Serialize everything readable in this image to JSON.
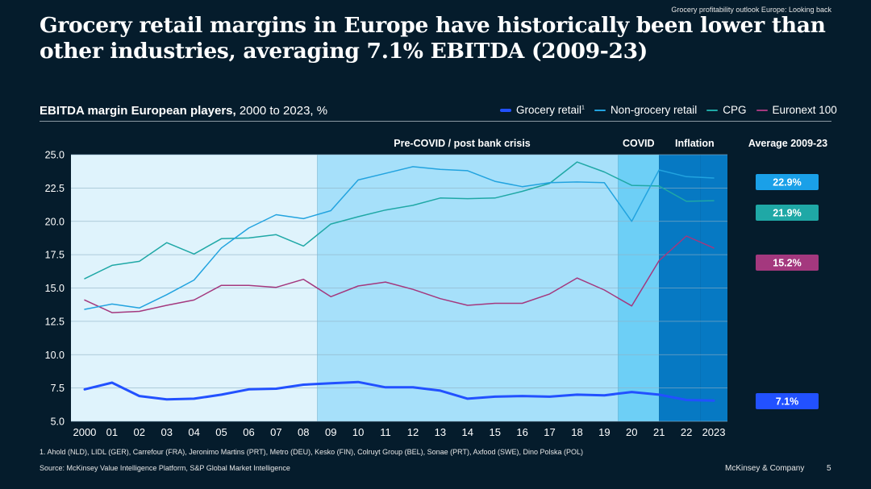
{
  "header": {
    "breadcrumb": "Grocery profitability outlook Europe: Looking back",
    "title": "Grocery retail margins in Europe have historically been lower than other industries, averaging 7.1% EBITDA (2009-23)"
  },
  "chart_data": {
    "type": "line",
    "title": "EBITDA margin European players,",
    "subtitle": " 2000 to 2023, %",
    "x": [
      2000,
      2001,
      2002,
      2003,
      2004,
      2005,
      2006,
      2007,
      2008,
      2009,
      2010,
      2011,
      2012,
      2013,
      2014,
      2015,
      2016,
      2017,
      2018,
      2019,
      2020,
      2021,
      2022,
      2023
    ],
    "x_tick_labels": [
      "2000",
      "01",
      "02",
      "03",
      "04",
      "05",
      "06",
      "07",
      "08",
      "09",
      "10",
      "11",
      "12",
      "13",
      "14",
      "15",
      "16",
      "17",
      "18",
      "19",
      "20",
      "21",
      "22",
      "2023"
    ],
    "ylim": [
      5.0,
      25.0
    ],
    "y_ticks": [
      "5.0",
      "7.5",
      "10.0",
      "12.5",
      "15.0",
      "17.5",
      "20.0",
      "22.5",
      "25.0"
    ],
    "grid": true,
    "legend_position": "top-right",
    "periods": [
      {
        "label": "",
        "start": 1999.5,
        "end": 2008.5,
        "color": "#dff3fc"
      },
      {
        "label": "Pre-COVID / post bank crisis",
        "start": 2008.5,
        "end": 2019.5,
        "color": "#a6e0fa"
      },
      {
        "label": "COVID",
        "start": 2019.5,
        "end": 2021.0,
        "color": "#6dcff6"
      },
      {
        "label": "Inflation",
        "start": 2021.0,
        "end": 2022.5,
        "color": "#0679c3"
      }
    ],
    "averages_header": "Average 2009-23",
    "series": [
      {
        "name": "Grocery retail",
        "footnote_mark": "1",
        "color": "#2251ff",
        "width": 3,
        "values": [
          7.4,
          7.9,
          6.9,
          6.65,
          6.7,
          7.0,
          7.4,
          7.45,
          7.75,
          7.85,
          7.95,
          7.55,
          7.55,
          7.3,
          6.7,
          6.85,
          6.9,
          6.85,
          7.0,
          6.95,
          7.2,
          7.0,
          6.6,
          6.55
        ],
        "average": "7.1%"
      },
      {
        "name": "Non-grocery retail",
        "color": "#22a3df",
        "width": 1.5,
        "values": [
          13.4,
          13.8,
          13.5,
          14.5,
          15.6,
          18.0,
          19.5,
          20.5,
          20.2,
          20.8,
          23.1,
          23.6,
          24.1,
          23.9,
          23.8,
          23.0,
          22.6,
          22.9,
          22.95,
          22.9,
          20.0,
          23.85,
          23.35,
          23.25
        ],
        "average": "22.9%"
      },
      {
        "name": "CPG",
        "color": "#1fa8a6",
        "width": 1.5,
        "values": [
          15.7,
          16.7,
          17.0,
          18.4,
          17.55,
          18.7,
          18.75,
          19.0,
          18.15,
          19.8,
          20.35,
          20.85,
          21.2,
          21.75,
          21.7,
          21.75,
          22.25,
          22.85,
          24.45,
          23.7,
          22.7,
          22.65,
          21.5,
          21.55
        ],
        "average": "21.9%"
      },
      {
        "name": "Euronext 100",
        "color": "#a4387e",
        "width": 1.5,
        "values": [
          14.1,
          13.15,
          13.25,
          13.7,
          14.1,
          15.2,
          15.2,
          15.05,
          15.65,
          14.35,
          15.15,
          15.45,
          14.9,
          14.2,
          13.7,
          13.85,
          13.85,
          14.55,
          15.75,
          14.85,
          13.65,
          17.05,
          18.9,
          18.0
        ],
        "average": "15.2%"
      }
    ]
  },
  "footer": {
    "footnote": "1.    Ahold (NLD), LIDL (GER), Carrefour (FRA),  Jeronimo Martins (PRT), Metro (DEU), Kesko (FIN), Colruyt Group (BEL), Sonae (PRT), Axfood (SWE), Dino Polska (POL)",
    "source": "Source: McKinsey Value Intelligence Platform, S&P Global Market Intelligence",
    "brand": "McKinsey & Company",
    "page_number": "5"
  }
}
